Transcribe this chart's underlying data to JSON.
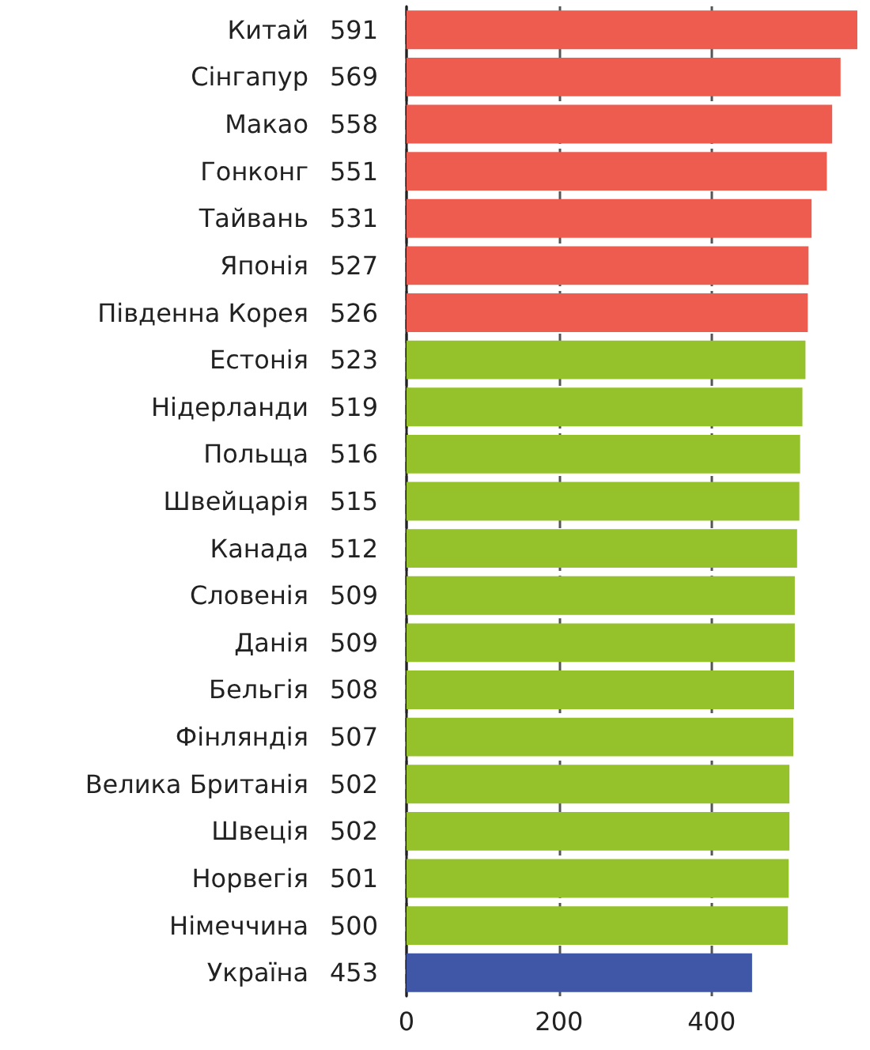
{
  "chart_data": {
    "type": "bar",
    "orientation": "horizontal",
    "categories": [
      "Китай",
      "Сінгапур",
      "Макао",
      "Гонконг",
      "Тайвань",
      "Японія",
      "Південна Корея",
      "Естонія",
      "Нідерланди",
      "Польща",
      "Швейцарія",
      "Канада",
      "Словенія",
      "Данія",
      "Бельгія",
      "Фінляндія",
      "Велика Британія",
      "Швеція",
      "Норвегія",
      "Німеччина",
      "Україна"
    ],
    "values": [
      591,
      569,
      558,
      551,
      531,
      527,
      526,
      523,
      519,
      516,
      515,
      512,
      509,
      509,
      508,
      507,
      502,
      502,
      501,
      500,
      453
    ],
    "colors": [
      "#ee5b4f",
      "#ee5b4f",
      "#ee5b4f",
      "#ee5b4f",
      "#ee5b4f",
      "#ee5b4f",
      "#ee5b4f",
      "#95c12a",
      "#95c12a",
      "#95c12a",
      "#95c12a",
      "#95c12a",
      "#95c12a",
      "#95c12a",
      "#95c12a",
      "#95c12a",
      "#95c12a",
      "#95c12a",
      "#95c12a",
      "#95c12a",
      "#3f57a6"
    ],
    "xlim": [
      0,
      591
    ],
    "xticks": [
      0,
      200,
      400
    ],
    "grid": "x",
    "data_labels": true
  }
}
